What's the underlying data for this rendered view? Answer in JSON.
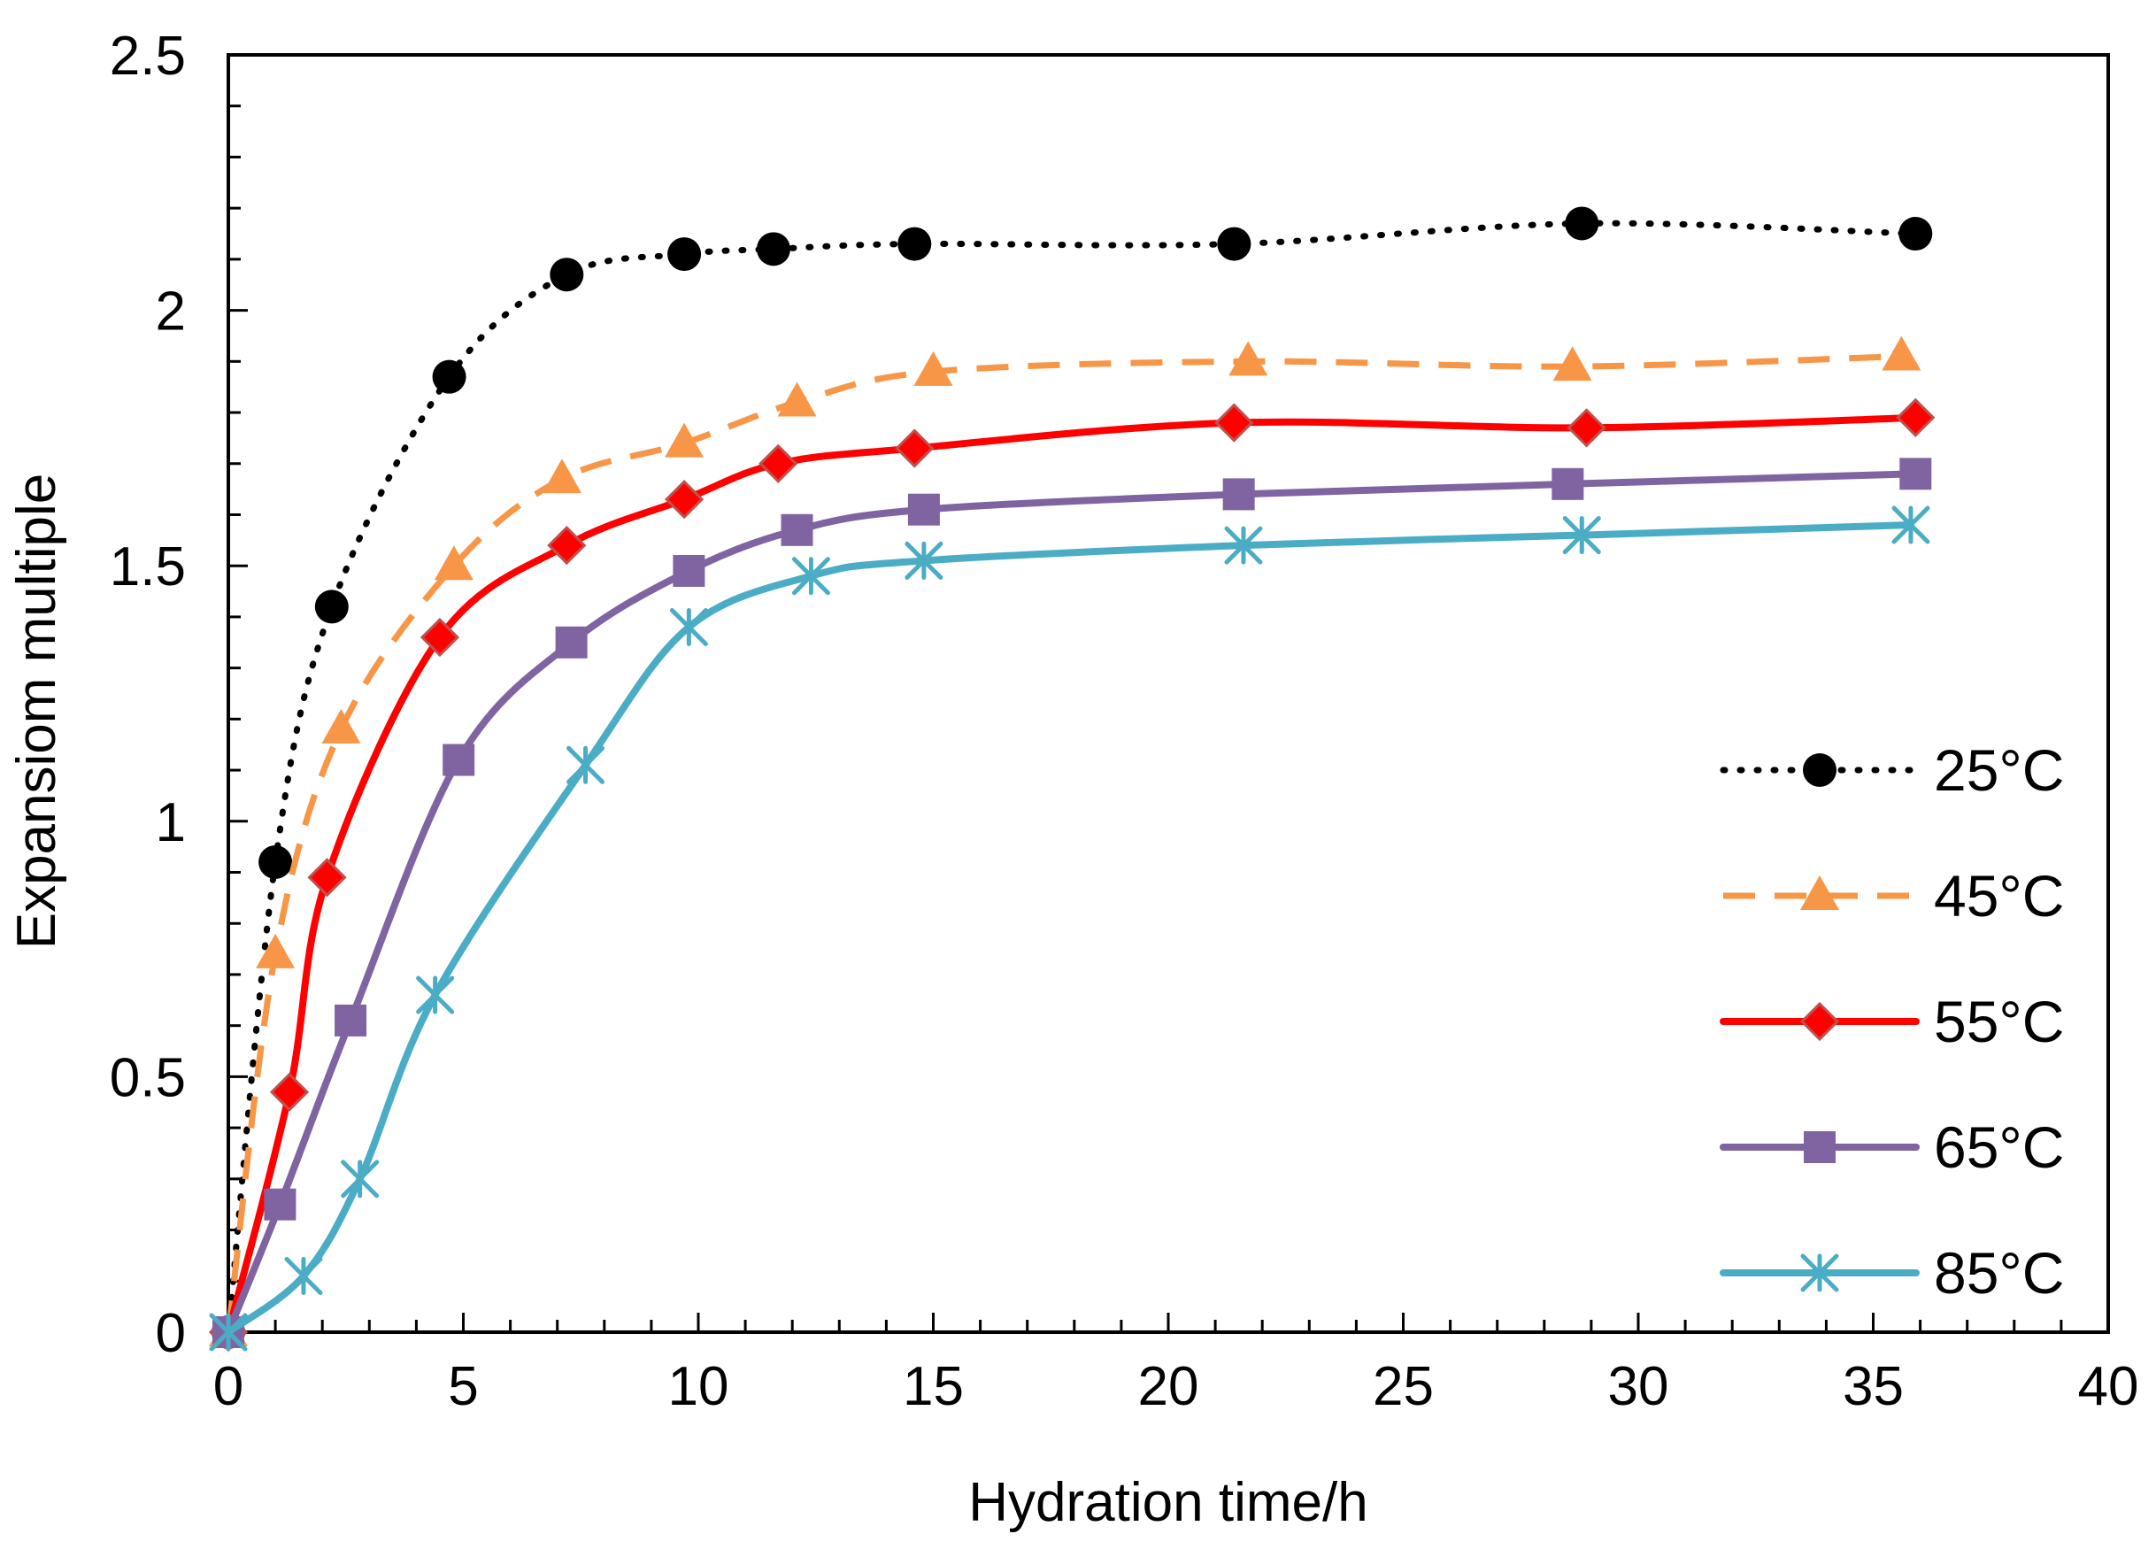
{
  "chart_data": {
    "type": "line",
    "title": "",
    "xlabel": "Hydration time/h",
    "ylabel": "Expansiom multiple",
    "xlim": [
      0,
      40
    ],
    "ylim": [
      0,
      2.5
    ],
    "xticks": [
      0,
      5,
      10,
      15,
      20,
      25,
      30,
      35,
      40
    ],
    "yticks": [
      0,
      0.5,
      1,
      1.5,
      2,
      2.5
    ],
    "x_tick_labels": [
      "0",
      "5",
      "10",
      "15",
      "20",
      "25",
      "30",
      "35",
      "40"
    ],
    "y_tick_labels": [
      "0",
      "0.5",
      "1",
      "1.5",
      "2",
      "2.5"
    ],
    "grid": false,
    "legend_position": "right",
    "series": [
      {
        "name": "25°C",
        "color": "#000000",
        "line_style": "dotted",
        "marker": "circle",
        "x": [
          0,
          1,
          2.2,
          4.7,
          7.2,
          9.7,
          11.6,
          14.6,
          21.4,
          28.8,
          35.9
        ],
        "y": [
          0,
          0.92,
          1.42,
          1.87,
          2.07,
          2.11,
          2.12,
          2.13,
          2.13,
          2.17,
          2.15
        ]
      },
      {
        "name": "45°C",
        "color": "#F79646",
        "line_style": "dashed",
        "marker": "triangle",
        "x": [
          0,
          1,
          2.4,
          4.8,
          7.1,
          9.7,
          12.1,
          15,
          21.7,
          28.6,
          35.6
        ],
        "y": [
          0,
          0.74,
          1.18,
          1.5,
          1.67,
          1.74,
          1.82,
          1.88,
          1.9,
          1.89,
          1.91
        ]
      },
      {
        "name": "55°C",
        "color": "#FF0000",
        "line_style": "solid",
        "marker": "diamond",
        "x": [
          0,
          1.3,
          2.1,
          4.5,
          7.2,
          9.7,
          11.7,
          14.6,
          21.4,
          28.9,
          35.9
        ],
        "y": [
          0,
          0.47,
          0.89,
          1.36,
          1.54,
          1.63,
          1.7,
          1.73,
          1.78,
          1.77,
          1.79
        ]
      },
      {
        "name": "65°C",
        "color": "#8064A2",
        "line_style": "solid",
        "marker": "square",
        "x": [
          0,
          1.1,
          2.6,
          4.9,
          7.3,
          9.8,
          12.1,
          14.8,
          21.5,
          28.5,
          35.9
        ],
        "y": [
          0,
          0.25,
          0.61,
          1.12,
          1.35,
          1.49,
          1.57,
          1.61,
          1.64,
          1.66,
          1.68
        ]
      },
      {
        "name": "85°C",
        "color": "#4BACC6",
        "line_style": "solid",
        "marker": "asterisk",
        "x": [
          0,
          1.6,
          2.8,
          4.4,
          7.6,
          9.8,
          12.4,
          14.8,
          21.6,
          28.8,
          35.8
        ],
        "y": [
          0,
          0.11,
          0.3,
          0.66,
          1.11,
          1.38,
          1.48,
          1.51,
          1.54,
          1.56,
          1.58
        ]
      }
    ]
  }
}
